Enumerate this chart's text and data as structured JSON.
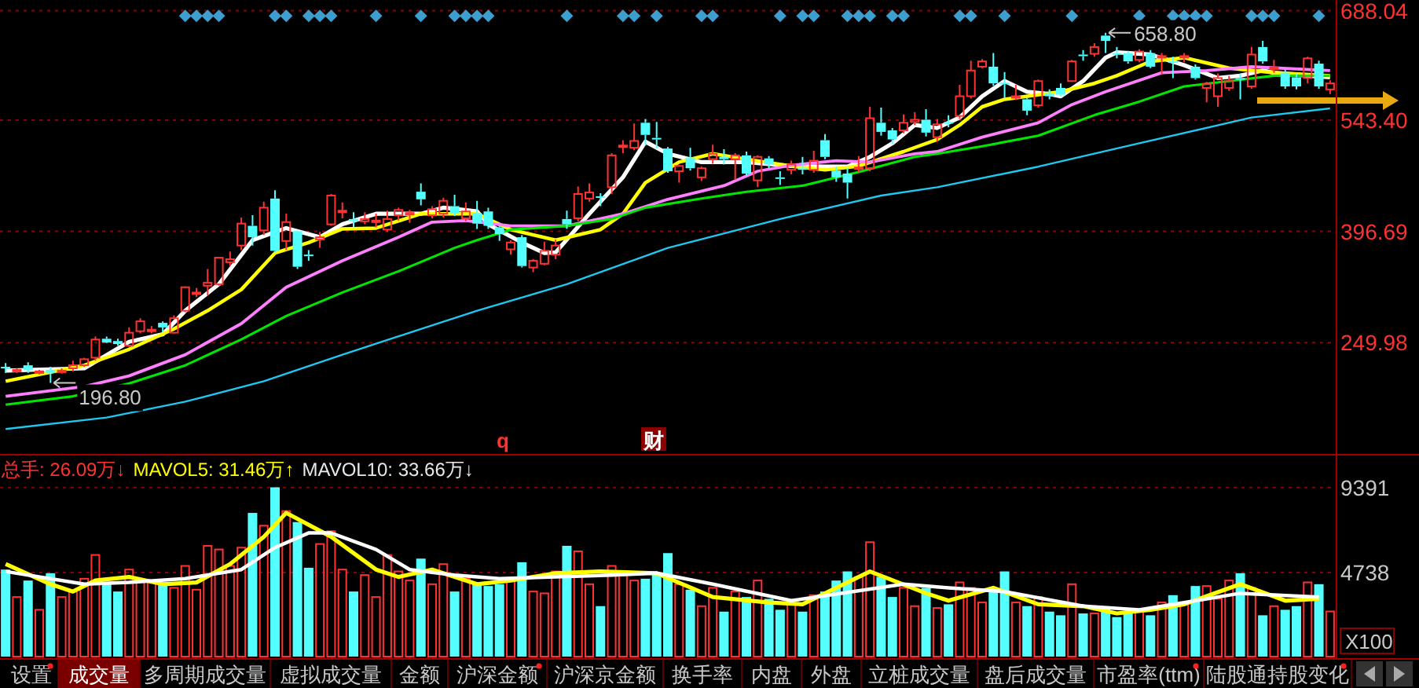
{
  "chart_data": [
    {
      "type": "candlestick",
      "categories": [
        null,
        null,
        null,
        null,
        null,
        null,
        null,
        null,
        null,
        null,
        null,
        null,
        null,
        null,
        null,
        null,
        null,
        null,
        null,
        null,
        null,
        null,
        null,
        null,
        null,
        null,
        null,
        null,
        null,
        null,
        null,
        null,
        null,
        null,
        null,
        null,
        null,
        null,
        null,
        null,
        null,
        null,
        null,
        null,
        null,
        null,
        null,
        null,
        null,
        null,
        null,
        null,
        null,
        null,
        null,
        null,
        null,
        null,
        null,
        null,
        null,
        null,
        null,
        null,
        null,
        null,
        null,
        null,
        null,
        null,
        null,
        null,
        null,
        null,
        null,
        null,
        null,
        null,
        null,
        null,
        null,
        null,
        null,
        null,
        null,
        null,
        null,
        null,
        null,
        null,
        null,
        null,
        null,
        null,
        null,
        null,
        null,
        null,
        null,
        null,
        null,
        null,
        null,
        null,
        null,
        null,
        null,
        null,
        null,
        null,
        null,
        null,
        null,
        null,
        null,
        null,
        null,
        null,
        null
      ],
      "ohlc": [
        [
          218,
          223,
          210,
          217
        ],
        [
          212,
          216,
          210,
          214
        ],
        [
          220,
          224,
          210,
          214
        ],
        [
          210,
          214,
          208,
          212
        ],
        [
          214,
          218,
          196.8,
          210
        ],
        [
          212,
          216,
          209,
          213
        ],
        [
          216,
          226,
          212,
          220
        ],
        [
          220,
          230,
          218,
          228
        ],
        [
          230,
          258,
          226,
          254
        ],
        [
          255,
          258,
          249,
          250
        ],
        [
          252,
          255,
          246,
          248
        ],
        [
          246,
          270,
          244,
          263
        ],
        [
          265,
          282,
          262,
          278
        ],
        [
          266,
          272,
          262,
          267
        ],
        [
          276,
          278,
          264,
          270
        ],
        [
          263,
          286,
          262,
          282
        ],
        [
          292,
          324,
          290,
          323
        ],
        [
          314,
          322,
          310,
          316
        ],
        [
          325,
          347,
          312,
          329
        ],
        [
          327,
          362,
          325,
          362
        ],
        [
          356,
          370,
          351,
          360
        ],
        [
          378,
          415,
          372,
          407
        ],
        [
          404,
          418,
          378,
          389
        ],
        [
          398,
          436,
          392,
          428
        ],
        [
          440,
          451,
          369,
          371
        ],
        [
          384,
          420,
          372,
          409
        ],
        [
          397,
          398,
          347,
          350
        ],
        [
          366,
          372,
          358,
          364
        ],
        [
          386,
          396,
          375,
          389
        ],
        [
          406,
          446,
          404,
          444
        ],
        [
          422,
          435,
          414,
          424
        ],
        [
          413,
          422,
          402,
          410
        ],
        [
          410,
          422,
          406,
          413
        ],
        [
          409,
          420,
          402,
          411
        ],
        [
          399,
          424,
          396,
          413
        ],
        [
          418,
          428,
          411,
          425
        ],
        [
          420,
          425,
          408,
          421
        ],
        [
          449,
          460,
          431,
          439
        ],
        [
          418,
          430,
          414,
          426
        ],
        [
          420,
          441,
          415,
          437
        ],
        [
          430,
          445,
          417,
          420
        ],
        [
          414,
          435,
          410,
          423
        ],
        [
          421,
          437,
          400,
          407
        ],
        [
          423,
          428,
          400,
          404
        ],
        [
          402,
          404,
          384,
          393
        ],
        [
          373,
          385,
          366,
          382
        ],
        [
          389,
          392,
          349,
          351
        ],
        [
          349,
          360,
          343,
          358
        ],
        [
          354,
          383,
          352,
          371
        ],
        [
          366,
          386,
          360,
          378
        ],
        [
          413,
          424,
          400,
          406
        ],
        [
          414,
          456,
          410,
          446
        ],
        [
          440,
          460,
          436,
          448
        ],
        [
          443,
          447,
          430,
          441
        ],
        [
          455,
          500,
          446,
          497
        ],
        [
          509,
          517,
          500,
          510
        ],
        [
          507,
          539,
          504,
          516
        ],
        [
          540,
          545,
          510,
          524
        ],
        [
          520,
          541,
          506,
          518
        ],
        [
          506,
          508,
          474,
          476
        ],
        [
          476,
          484,
          461,
          483
        ],
        [
          494,
          507,
          477,
          480
        ],
        [
          468,
          482,
          463,
          480
        ],
        [
          492,
          511,
          486,
          499
        ],
        [
          495,
          505,
          485,
          492
        ],
        [
          492,
          500,
          465,
          497
        ],
        [
          497,
          502,
          470,
          473
        ],
        [
          464,
          497,
          455,
          495
        ],
        [
          493,
          496,
          480,
          485
        ],
        [
          468,
          476,
          458,
          467
        ],
        [
          478,
          490,
          472,
          485
        ],
        [
          480,
          495,
          472,
          478
        ],
        [
          478,
          503,
          474,
          490
        ],
        [
          517,
          525,
          492,
          495
        ],
        [
          477,
          482,
          462,
          468
        ],
        [
          473,
          480,
          440,
          461
        ],
        [
          479,
          496,
          475,
          481
        ],
        [
          480,
          561,
          476,
          546
        ],
        [
          540,
          560,
          523,
          528
        ],
        [
          530,
          533,
          512,
          518
        ],
        [
          530,
          551,
          526,
          540
        ],
        [
          541,
          554,
          537,
          544
        ],
        [
          544,
          558,
          522,
          527
        ],
        [
          521,
          545,
          515,
          538
        ],
        [
          541,
          550,
          534,
          540
        ],
        [
          549,
          590,
          545,
          575
        ],
        [
          575,
          622,
          572,
          609
        ],
        [
          614,
          624,
          612,
          621
        ],
        [
          614,
          632,
          589,
          592
        ],
        [
          593,
          607,
          573,
          592
        ],
        [
          573,
          590,
          570,
          575
        ],
        [
          571,
          573,
          550,
          556
        ],
        [
          563,
          597,
          560,
          595
        ],
        [
          579,
          584,
          571,
          575
        ],
        [
          586,
          592,
          575,
          577
        ],
        [
          595,
          623,
          594,
          621
        ],
        [
          630,
          636,
          622,
          629
        ],
        [
          631,
          645,
          627,
          640
        ],
        [
          655,
          658.8,
          632,
          648
        ],
        [
          632,
          640,
          625,
          631
        ],
        [
          632,
          635,
          618,
          621
        ],
        [
          623,
          637,
          620,
          634
        ],
        [
          632,
          636,
          612,
          614
        ],
        [
          627,
          632,
          604,
          628
        ],
        [
          621,
          627,
          599,
          620
        ],
        [
          627,
          632,
          620,
          628
        ],
        [
          614,
          617,
          597,
          599
        ],
        [
          586,
          594,
          567,
          591
        ],
        [
          575,
          605,
          561,
          599
        ],
        [
          586,
          602,
          582,
          595
        ],
        [
          599,
          605,
          571,
          598
        ],
        [
          588,
          640,
          585,
          630
        ],
        [
          640,
          648,
          618,
          621
        ],
        [
          612,
          623,
          606,
          613
        ],
        [
          606,
          610,
          585,
          588
        ],
        [
          600,
          605,
          584,
          588
        ],
        [
          599,
          627,
          592,
          625
        ],
        [
          618,
          622,
          585,
          588
        ],
        [
          584,
          596,
          578,
          592
        ]
      ],
      "colors": [
        "#54ffff",
        "#ff3232",
        "#54ffff",
        "#ff3232",
        "#54ffff",
        "#ff3232",
        "#ff3232",
        "#ff3232",
        "#ff3232",
        "#54ffff",
        "#54ffff",
        "#ff3232",
        "#ff3232",
        "#ff3232",
        "#54ffff",
        "#ff3232",
        "#ff3232",
        "#ff3232",
        "#ff3232",
        "#ff3232",
        "#ff3232",
        "#ff3232",
        "#54ffff",
        "#ff3232",
        "#54ffff",
        "#ff3232",
        "#54ffff",
        "#54ffff",
        "#ff3232",
        "#ff3232",
        "#ff3232",
        "#54ffff",
        "#ff3232",
        "#ff3232",
        "#ff3232",
        "#ff3232",
        "#ff3232",
        "#54ffff",
        "#ff3232",
        "#ff3232",
        "#54ffff",
        "#ff3232",
        "#54ffff",
        "#54ffff",
        "#54ffff",
        "#ff3232",
        "#54ffff",
        "#ff3232",
        "#ff3232",
        "#ff3232",
        "#54ffff",
        "#ff3232",
        "#ff3232",
        "#54ffff",
        "#ff3232",
        "#ff3232",
        "#ff3232",
        "#54ffff",
        "#54ffff",
        "#54ffff",
        "#ff3232",
        "#54ffff",
        "#ff3232",
        "#ff3232",
        "#54ffff",
        "#ff3232",
        "#54ffff",
        "#ff3232",
        "#54ffff",
        "#54ffff",
        "#ff3232",
        "#54ffff",
        "#ff3232",
        "#54ffff",
        "#54ffff",
        "#54ffff",
        "#ff3232",
        "#ff3232",
        "#54ffff",
        "#54ffff",
        "#ff3232",
        "#ff3232",
        "#54ffff",
        "#ff3232",
        "#54ffff",
        "#ff3232",
        "#ff3232",
        "#ff3232",
        "#54ffff",
        "#54ffff",
        "#ff3232",
        "#54ffff",
        "#ff3232",
        "#54ffff",
        "#54ffff",
        "#ff3232",
        "#54ffff",
        "#ff3232",
        "#54ffff",
        "#54ffff",
        "#54ffff",
        "#ff3232",
        "#54ffff",
        "#ff3232",
        "#54ffff",
        "#ff3232",
        "#54ffff",
        "#ff3232",
        "#ff3232",
        "#ff3232",
        "#54ffff",
        "#ff3232",
        "#54ffff",
        "#ff3232",
        "#54ffff",
        "#54ffff",
        "#ff3232",
        "#54ffff",
        "#ff3232"
      ],
      "series": [
        {
          "type": "line",
          "color": "#ffffff",
          "values": [
            213,
            null,
            null,
            null,
            null,
            null,
            null,
            216,
            null,
            null,
            null,
            251,
            null,
            null,
            261,
            null,
            292,
            null,
            null,
            327,
            null,
            null,
            385,
            null,
            null,
            401,
            null,
            null,
            389,
            null,
            406,
            null,
            null,
            420,
            null,
            null,
            null,
            420,
            null,
            428,
            null,
            null,
            423,
            406,
            null,
            null,
            382,
            null,
            368,
            369,
            null,
            null,
            420,
            null,
            null,
            468,
            null,
            515,
            null,
            499,
            null,
            null,
            488,
            null,
            null,
            null,
            488,
            null,
            null,
            null,
            483,
            null,
            null,
            482,
            null,
            482,
            null,
            495,
            null,
            513,
            null,
            537,
            null,
            533,
            null,
            547,
            null,
            575,
            null,
            595,
            null,
            581,
            null,
            578,
            575,
            null,
            595,
            null,
            626,
            633,
            null,
            null,
            630,
            null,
            null,
            616,
            null,
            null,
            599,
            null,
            602,
            null,
            609,
            606,
            null,
            null,
            602,
            null,
            600
          ]
        },
        {
          "type": "line",
          "color": "#ffff00",
          "values": [
            199,
            null,
            null,
            null,
            null,
            null,
            null,
            220,
            null,
            null,
            null,
            241,
            null,
            null,
            null,
            268,
            null,
            null,
            292,
            null,
            null,
            320,
            null,
            null,
            368,
            null,
            null,
            382,
            null,
            null,
            400,
            null,
            null,
            401,
            null,
            null,
            null,
            420,
            null,
            null,
            null,
            null,
            420,
            null,
            null,
            399,
            null,
            null,
            null,
            385,
            null,
            null,
            null,
            399,
            null,
            420,
            null,
            461,
            null,
            null,
            488,
            null,
            null,
            499,
            null,
            null,
            492,
            null,
            null,
            null,
            483,
            null,
            null,
            478,
            null,
            null,
            483,
            null,
            null,
            null,
            502,
            null,
            null,
            518,
            null,
            537,
            null,
            561,
            null,
            571,
            null,
            null,
            null,
            null,
            581,
            null,
            null,
            592,
            null,
            602,
            null,
            null,
            621,
            null,
            null,
            626,
            null,
            null,
            null,
            612,
            null,
            null,
            null,
            606,
            null,
            null,
            null,
            null,
            602
          ]
        },
        {
          "type": "line",
          "color": "#ff80ff",
          "values": [
            179,
            null,
            null,
            null,
            null,
            null,
            null,
            192,
            null,
            null,
            null,
            206,
            null,
            null,
            null,
            null,
            234,
            null,
            null,
            null,
            null,
            275,
            null,
            null,
            null,
            323,
            null,
            null,
            null,
            null,
            358,
            null,
            null,
            null,
            null,
            389,
            null,
            null,
            409,
            null,
            null,
            411,
            null,
            null,
            null,
            404,
            null,
            null,
            null,
            null,
            404,
            null,
            null,
            null,
            null,
            420,
            null,
            null,
            null,
            439,
            null,
            null,
            null,
            null,
            457,
            null,
            null,
            476,
            null,
            null,
            484,
            null,
            null,
            null,
            490,
            null,
            null,
            488,
            null,
            null,
            null,
            499,
            null,
            502,
            null,
            null,
            null,
            521,
            null,
            null,
            null,
            null,
            540,
            null,
            null,
            564,
            null,
            null,
            581,
            null,
            null,
            null,
            null,
            606,
            null,
            null,
            null,
            609,
            null,
            null,
            null,
            614,
            null,
            null,
            null,
            null,
            null,
            null,
            609
          ]
        },
        {
          "type": "line",
          "color": "#00e600",
          "values": [
            168,
            null,
            null,
            null,
            null,
            null,
            179,
            null,
            null,
            null,
            null,
            196,
            null,
            null,
            null,
            null,
            220,
            null,
            null,
            null,
            null,
            254,
            null,
            null,
            null,
            285,
            null,
            null,
            null,
            null,
            316,
            null,
            null,
            null,
            null,
            344,
            null,
            null,
            null,
            null,
            375,
            null,
            385,
            null,
            null,
            399,
            null,
            null,
            null,
            null,
            404,
            null,
            null,
            null,
            413,
            null,
            null,
            428,
            null,
            null,
            null,
            null,
            440,
            null,
            null,
            null,
            449,
            null,
            null,
            null,
            null,
            457,
            null,
            null,
            null,
            null,
            475,
            null,
            null,
            null,
            null,
            495,
            null,
            499,
            null,
            null,
            null,
            509,
            null,
            null,
            null,
            null,
            523,
            null,
            null,
            null,
            null,
            550,
            null,
            null,
            null,
            568,
            null,
            null,
            null,
            588,
            null,
            null,
            null,
            595,
            null,
            null,
            null,
            602,
            null,
            null,
            null,
            null,
            602
          ]
        },
        {
          "type": "line",
          "color": "#1ec8f0",
          "values": [
            136,
            null,
            null,
            null,
            null,
            null,
            null,
            null,
            null,
            151,
            null,
            null,
            null,
            null,
            null,
            null,
            172,
            null,
            null,
            null,
            null,
            null,
            null,
            199,
            null,
            null,
            null,
            null,
            null,
            null,
            234,
            null,
            null,
            null,
            null,
            null,
            null,
            268,
            null,
            null,
            null,
            null,
            292,
            null,
            null,
            null,
            null,
            null,
            null,
            null,
            327,
            null,
            null,
            null,
            null,
            null,
            null,
            null,
            null,
            375,
            null,
            null,
            null,
            null,
            null,
            null,
            null,
            null,
            null,
            413,
            null,
            null,
            null,
            null,
            null,
            null,
            null,
            null,
            444,
            null,
            null,
            null,
            null,
            455,
            null,
            null,
            null,
            null,
            null,
            null,
            null,
            null,
            482,
            null,
            null,
            null,
            null,
            null,
            null,
            null,
            null,
            513,
            null,
            null,
            null,
            null,
            null,
            null,
            null,
            null,
            null,
            547,
            null,
            null,
            null,
            null,
            null,
            null,
            559
          ]
        },
        {
          "type": "scatter",
          "marker": "diamond",
          "color": "#3c9fd0",
          "values": [
            null,
            null,
            null,
            null,
            null,
            null,
            null,
            null,
            null,
            null,
            null,
            null,
            null,
            null,
            null,
            null,
            681,
            681,
            681,
            681,
            null,
            null,
            null,
            null,
            681,
            681,
            null,
            681,
            681,
            681,
            null,
            null,
            null,
            681,
            null,
            null,
            null,
            681,
            null,
            null,
            681,
            681,
            681,
            681,
            null,
            null,
            null,
            null,
            null,
            null,
            681,
            null,
            null,
            null,
            null,
            681,
            681,
            null,
            681,
            null,
            null,
            null,
            681,
            681,
            null,
            null,
            null,
            null,
            null,
            681,
            null,
            681,
            681,
            null,
            null,
            681,
            681,
            681,
            null,
            681,
            681,
            null,
            null,
            null,
            null,
            681,
            681,
            null,
            null,
            681,
            null,
            null,
            null,
            null,
            null,
            681,
            null,
            null,
            null,
            null,
            null,
            681,
            null,
            null,
            681,
            681,
            681,
            681,
            null,
            null,
            null,
            681,
            681,
            681,
            null,
            null,
            null,
            681,
            null
          ]
        }
      ],
      "ylim": [
        103,
        702
      ],
      "yticks": [
        249.98,
        396.69,
        {
          "value": 543.4,
          "label": "543.40"
        },
        688.04
      ],
      "grid": "y",
      "annotations": [
        "658.80",
        "196.80",
        "q",
        "财"
      ]
    },
    {
      "type": "bar",
      "categories": [
        null,
        null,
        null,
        null,
        null,
        null,
        null,
        null,
        null,
        null,
        null,
        null,
        null,
        null,
        null,
        null,
        null,
        null,
        null,
        null,
        null,
        null,
        null,
        null,
        null,
        null,
        null,
        null,
        null,
        null,
        null,
        null,
        null,
        null,
        null,
        null,
        null,
        null,
        null,
        null,
        null,
        null,
        null,
        null,
        null,
        null,
        null,
        null,
        null,
        null,
        null,
        null,
        null,
        null,
        null,
        null,
        null,
        null,
        null,
        null,
        null,
        null,
        null,
        null,
        null,
        null,
        null,
        null,
        null,
        null,
        null,
        null,
        null,
        null,
        null,
        null,
        null,
        null,
        null,
        null,
        null,
        null,
        null,
        null,
        null,
        null,
        null,
        null,
        null,
        null,
        null,
        null,
        null,
        null,
        null,
        null,
        null,
        null,
        null,
        null,
        null,
        null,
        null,
        null,
        null,
        null,
        null,
        null,
        null,
        null,
        null,
        null,
        null,
        null,
        null,
        null,
        null,
        null,
        null
      ],
      "values": [
        4900,
        3400,
        4300,
        2700,
        4700,
        3400,
        3700,
        4400,
        5700,
        4200,
        3700,
        4900,
        4300,
        4200,
        4200,
        3900,
        5100,
        3800,
        6200,
        6000,
        5100,
        6100,
        8000,
        7300,
        9400,
        8100,
        7500,
        5000,
        6300,
        7000,
        4900,
        3700,
        4600,
        3400,
        5700,
        4800,
        4300,
        5500,
        4100,
        5200,
        3700,
        4400,
        4100,
        4000,
        4100,
        4300,
        5300,
        3700,
        3600,
        4800,
        6200,
        5900,
        4100,
        2900,
        5100,
        4600,
        4300,
        4400,
        4700,
        5800,
        4100,
        3800,
        2900,
        3900,
        2600,
        3700,
        3400,
        4300,
        3300,
        2700,
        3000,
        2600,
        3500,
        3700,
        4300,
        4800,
        4500,
        6400,
        4500,
        3400,
        3900,
        2900,
        3900,
        2800,
        3000,
        4200,
        3900,
        3100,
        3800,
        4800,
        3100,
        2900,
        3400,
        2600,
        2400,
        4100,
        2500,
        2500,
        2800,
        2300,
        2600,
        2700,
        2400,
        3100,
        3500,
        3000,
        4000,
        4000,
        3300,
        4300,
        4700,
        3900,
        2400,
        2900,
        2700,
        2900,
        4200,
        4100,
        2609
      ],
      "colors": [
        "#54ffff",
        "#ff3232",
        "#54ffff",
        "#ff3232",
        "#54ffff",
        "#ff3232",
        "#ff3232",
        "#ff3232",
        "#ff3232",
        "#54ffff",
        "#54ffff",
        "#ff3232",
        "#ff3232",
        "#ff3232",
        "#54ffff",
        "#ff3232",
        "#ff3232",
        "#ff3232",
        "#ff3232",
        "#ff3232",
        "#ff3232",
        "#ff3232",
        "#54ffff",
        "#ff3232",
        "#54ffff",
        "#ff3232",
        "#54ffff",
        "#54ffff",
        "#ff3232",
        "#ff3232",
        "#ff3232",
        "#54ffff",
        "#ff3232",
        "#ff3232",
        "#ff3232",
        "#ff3232",
        "#ff3232",
        "#54ffff",
        "#ff3232",
        "#ff3232",
        "#54ffff",
        "#ff3232",
        "#54ffff",
        "#54ffff",
        "#54ffff",
        "#ff3232",
        "#54ffff",
        "#ff3232",
        "#ff3232",
        "#ff3232",
        "#54ffff",
        "#ff3232",
        "#ff3232",
        "#54ffff",
        "#ff3232",
        "#ff3232",
        "#ff3232",
        "#54ffff",
        "#54ffff",
        "#54ffff",
        "#ff3232",
        "#54ffff",
        "#ff3232",
        "#ff3232",
        "#54ffff",
        "#ff3232",
        "#54ffff",
        "#ff3232",
        "#54ffff",
        "#54ffff",
        "#ff3232",
        "#54ffff",
        "#ff3232",
        "#54ffff",
        "#54ffff",
        "#54ffff",
        "#ff3232",
        "#ff3232",
        "#54ffff",
        "#54ffff",
        "#ff3232",
        "#ff3232",
        "#54ffff",
        "#ff3232",
        "#54ffff",
        "#ff3232",
        "#ff3232",
        "#ff3232",
        "#54ffff",
        "#54ffff",
        "#ff3232",
        "#54ffff",
        "#ff3232",
        "#54ffff",
        "#54ffff",
        "#ff3232",
        "#54ffff",
        "#ff3232",
        "#54ffff",
        "#54ffff",
        "#54ffff",
        "#ff3232",
        "#54ffff",
        "#ff3232",
        "#54ffff",
        "#ff3232",
        "#54ffff",
        "#ff3232",
        "#ff3232",
        "#ff3232",
        "#54ffff",
        "#ff3232",
        "#54ffff",
        "#ff3232",
        "#54ffff",
        "#54ffff",
        "#ff3232",
        "#54ffff",
        "#ff3232"
      ],
      "series": [
        {
          "type": "line",
          "color": "#ffff00",
          "values": [
            5200,
            null,
            null,
            null,
            4100,
            null,
            3700,
            null,
            4300,
            null,
            null,
            4500,
            null,
            null,
            4100,
            null,
            null,
            4200,
            null,
            null,
            5200,
            null,
            null,
            6700,
            null,
            8000,
            null,
            null,
            null,
            6700,
            null,
            null,
            null,
            4900,
            null,
            4500,
            null,
            null,
            4900,
            null,
            null,
            null,
            4100,
            null,
            null,
            4300,
            null,
            null,
            null,
            4700,
            null,
            null,
            null,
            4800,
            null,
            null,
            null,
            null,
            4700,
            null,
            null,
            null,
            null,
            3400,
            null,
            null,
            null,
            null,
            3100,
            null,
            null,
            3000,
            null,
            null,
            null,
            null,
            null,
            4800,
            null,
            null,
            null,
            null,
            3600,
            null,
            3200,
            null,
            null,
            null,
            3900,
            null,
            null,
            null,
            3000,
            null,
            null,
            null,
            2900,
            null,
            null,
            2500,
            null,
            null,
            2700,
            null,
            null,
            3000,
            null,
            null,
            null,
            null,
            4100,
            null,
            null,
            null,
            3200,
            null,
            null,
            3300,
            null
          ]
        },
        {
          "type": "line",
          "color": "#ffffff",
          "values": [
            4800,
            null,
            null,
            null,
            null,
            null,
            null,
            4100,
            null,
            null,
            null,
            4200,
            null,
            null,
            null,
            null,
            4400,
            null,
            null,
            null,
            null,
            4900,
            null,
            null,
            6100,
            null,
            null,
            6900,
            null,
            6900,
            null,
            null,
            null,
            6000,
            null,
            null,
            4900,
            null,
            null,
            null,
            4600,
            null,
            null,
            null,
            4400,
            null,
            null,
            null,
            null,
            4500,
            null,
            null,
            null,
            null,
            4600,
            null,
            null,
            null,
            4700,
            null,
            null,
            null,
            null,
            4100,
            null,
            null,
            null,
            null,
            null,
            null,
            3200,
            null,
            null,
            null,
            null,
            null,
            null,
            null,
            null,
            null,
            4100,
            null,
            null,
            null,
            3900,
            null,
            null,
            null,
            null,
            3700,
            null,
            null,
            null,
            null,
            null,
            null,
            2900,
            null,
            null,
            null,
            null,
            2700,
            null,
            null,
            null,
            3100,
            null,
            null,
            null,
            null,
            3600,
            null,
            null,
            null,
            null,
            null,
            null,
            3400,
            null
          ]
        }
      ],
      "ylim": [
        140,
        11225
      ],
      "yticks": [
        4738,
        9391
      ],
      "grid": "y",
      "annotations": [
        "总手: 26.09万↓",
        "MAVOL5: 31.46万↑",
        "MAVOL10: 33.66万↓",
        "X100"
      ]
    },
    {
      "type": "other",
      "annotations": [
        "设置",
        "成交量",
        "多周期成交量",
        "虚拟成交量",
        "金额",
        "沪深金额",
        "沪深京金额",
        "换手率",
        "内盘",
        "外盘",
        "立桩成交量",
        "盘后成交量",
        "市盈率(ttm)",
        "陆股通持股变化"
      ]
    }
  ]
}
